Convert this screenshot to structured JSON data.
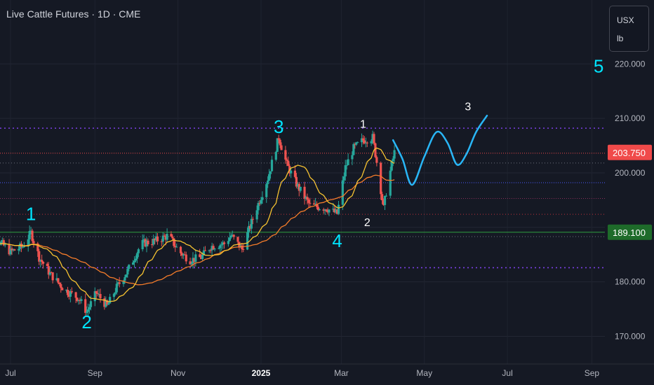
{
  "header": {
    "title": "Live Cattle Futures · 1D · CME"
  },
  "units": {
    "currency": "USX",
    "measure": "lb"
  },
  "colors": {
    "background": "#151924",
    "up": "#26a69a",
    "down": "#ef5350",
    "ma_fast": "#f7c331",
    "ma_slow": "#f57c2a",
    "projection": "#29b6f6",
    "wave_label": "#00e5ff",
    "price_tag": "#f04a4a",
    "support_tag": "#1e6b2a"
  },
  "chart_data": {
    "type": "candlestick",
    "title": "Live Cattle Futures · 1D · CME",
    "y_axis": {
      "ticks": [
        220,
        210,
        200,
        180,
        170
      ],
      "ylim": [
        164,
        224
      ],
      "side": "right"
    },
    "x_axis": {
      "ticks": [
        "Jul",
        "Sep",
        "Nov",
        "2025",
        "Mar",
        "May",
        "Jul",
        "Sep"
      ]
    },
    "price_labels": [
      {
        "value": "203.750",
        "kind": "last_price"
      },
      {
        "value": "189.100",
        "kind": "support"
      }
    ],
    "horizontal_levels": [
      208.2,
      203.6,
      201.8,
      198.2,
      195.3,
      192.4,
      189.1,
      188.3,
      182.6
    ],
    "wave_labels": [
      {
        "text": "1",
        "date": "2024-07-16",
        "price": 191.3,
        "style": "major"
      },
      {
        "text": "2",
        "date": "2024-08-26",
        "price": 171.5,
        "style": "major"
      },
      {
        "text": "3",
        "date": "2025-01-14",
        "price": 207.3,
        "style": "major"
      },
      {
        "text": "4",
        "date": "2025-02-26",
        "price": 186.4,
        "style": "major"
      },
      {
        "text": "5",
        "date": "2025-09-06",
        "price": 218.4,
        "style": "major"
      },
      {
        "text": "1",
        "date": "2025-03-17",
        "price": 208.3,
        "style": "minor"
      },
      {
        "text": "2",
        "date": "2025-03-20",
        "price": 190.2,
        "style": "minor"
      },
      {
        "text": "3",
        "date": "2025-06-02",
        "price": 211.5,
        "style": "minor"
      }
    ],
    "projection_path": [
      [
        "2025-04-08",
        206.0
      ],
      [
        "2025-04-15",
        202.5
      ],
      [
        "2025-04-22",
        197.8
      ],
      [
        "2025-05-01",
        203.0
      ],
      [
        "2025-05-10",
        207.5
      ],
      [
        "2025-05-18",
        205.5
      ],
      [
        "2025-05-25",
        201.5
      ],
      [
        "2025-06-01",
        203.5
      ],
      [
        "2025-06-08",
        207.5
      ],
      [
        "2025-06-16",
        210.5
      ]
    ],
    "anchors": [
      [
        "2024-06-10",
        186.5
      ],
      [
        "2024-06-20",
        188.0
      ],
      [
        "2024-07-01",
        185.5
      ],
      [
        "2024-07-10",
        186.5
      ],
      [
        "2024-07-16",
        189.0
      ],
      [
        "2024-07-22",
        184.5
      ],
      [
        "2024-07-30",
        181.5
      ],
      [
        "2024-08-10",
        178.5
      ],
      [
        "2024-08-20",
        177.0
      ],
      [
        "2024-08-26",
        174.5
      ],
      [
        "2024-09-02",
        178.0
      ],
      [
        "2024-09-10",
        175.5
      ],
      [
        "2024-09-17",
        179.0
      ],
      [
        "2024-09-25",
        182.0
      ],
      [
        "2024-10-05",
        187.0
      ],
      [
        "2024-10-15",
        187.5
      ],
      [
        "2024-10-25",
        188.5
      ],
      [
        "2024-11-02",
        185.5
      ],
      [
        "2024-11-10",
        184.0
      ],
      [
        "2024-11-18",
        184.5
      ],
      [
        "2024-11-25",
        186.5
      ],
      [
        "2024-12-05",
        187.0
      ],
      [
        "2024-12-10",
        188.5
      ],
      [
        "2024-12-18",
        186.0
      ],
      [
        "2024-12-28",
        193.0
      ],
      [
        "2025-01-06",
        199.0
      ],
      [
        "2025-01-14",
        206.5
      ],
      [
        "2025-01-20",
        201.5
      ],
      [
        "2025-01-28",
        197.5
      ],
      [
        "2025-02-06",
        194.0
      ],
      [
        "2025-02-18",
        193.5
      ],
      [
        "2025-02-26",
        192.5
      ],
      [
        "2025-03-04",
        201.0
      ],
      [
        "2025-03-10",
        204.5
      ],
      [
        "2025-03-17",
        206.0
      ],
      [
        "2025-03-24",
        206.5
      ],
      [
        "2025-03-27",
        202.0
      ],
      [
        "2025-04-01",
        193.5
      ],
      [
        "2025-04-04",
        198.0
      ],
      [
        "2025-04-09",
        203.75
      ]
    ]
  }
}
